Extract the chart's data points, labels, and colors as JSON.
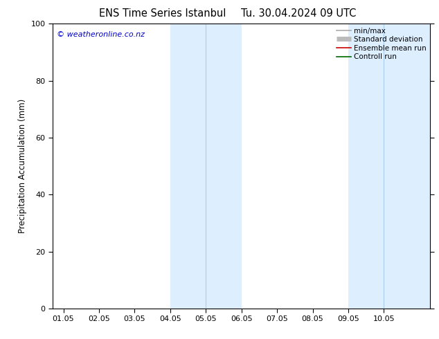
{
  "title_left": "ENS Time Series Istanbul",
  "title_right": "Tu. 30.04.2024 09 UTC",
  "ylabel": "Precipitation Accumulation (mm)",
  "ylim": [
    0,
    100
  ],
  "xlim": [
    -0.3,
    10.3
  ],
  "xtick_positions": [
    0,
    1,
    2,
    3,
    4,
    5,
    6,
    7,
    8,
    9
  ],
  "xtick_labels": [
    "01.05",
    "02.05",
    "03.05",
    "04.05",
    "05.05",
    "06.05",
    "07.05",
    "08.05",
    "09.05",
    "10.05"
  ],
  "ytick_values": [
    0,
    20,
    40,
    60,
    80,
    100
  ],
  "ytick_labels": [
    "0",
    "20",
    "40",
    "60",
    "80",
    "100"
  ],
  "watermark": "© weatheronline.co.nz",
  "watermark_color": "#0000cc",
  "shaded_bands": [
    {
      "xmin": 3.0,
      "xmax": 5.0,
      "color": "#ddeeff"
    },
    {
      "xmin": 8.0,
      "xmax": 10.3,
      "color": "#ddeeff"
    }
  ],
  "band_dividers": [
    4.0
  ],
  "legend_entries": [
    {
      "label": "min/max",
      "color": "#aaaaaa",
      "lw": 1.2
    },
    {
      "label": "Standard deviation",
      "color": "#bbbbbb",
      "lw": 5
    },
    {
      "label": "Ensemble mean run",
      "color": "#cc0000",
      "lw": 1.2
    },
    {
      "label": "Controll run",
      "color": "#006600",
      "lw": 1.2
    }
  ],
  "background_color": "#ffffff",
  "title_fontsize": 10.5,
  "label_fontsize": 8.5,
  "tick_fontsize": 8,
  "legend_fontsize": 7.5
}
